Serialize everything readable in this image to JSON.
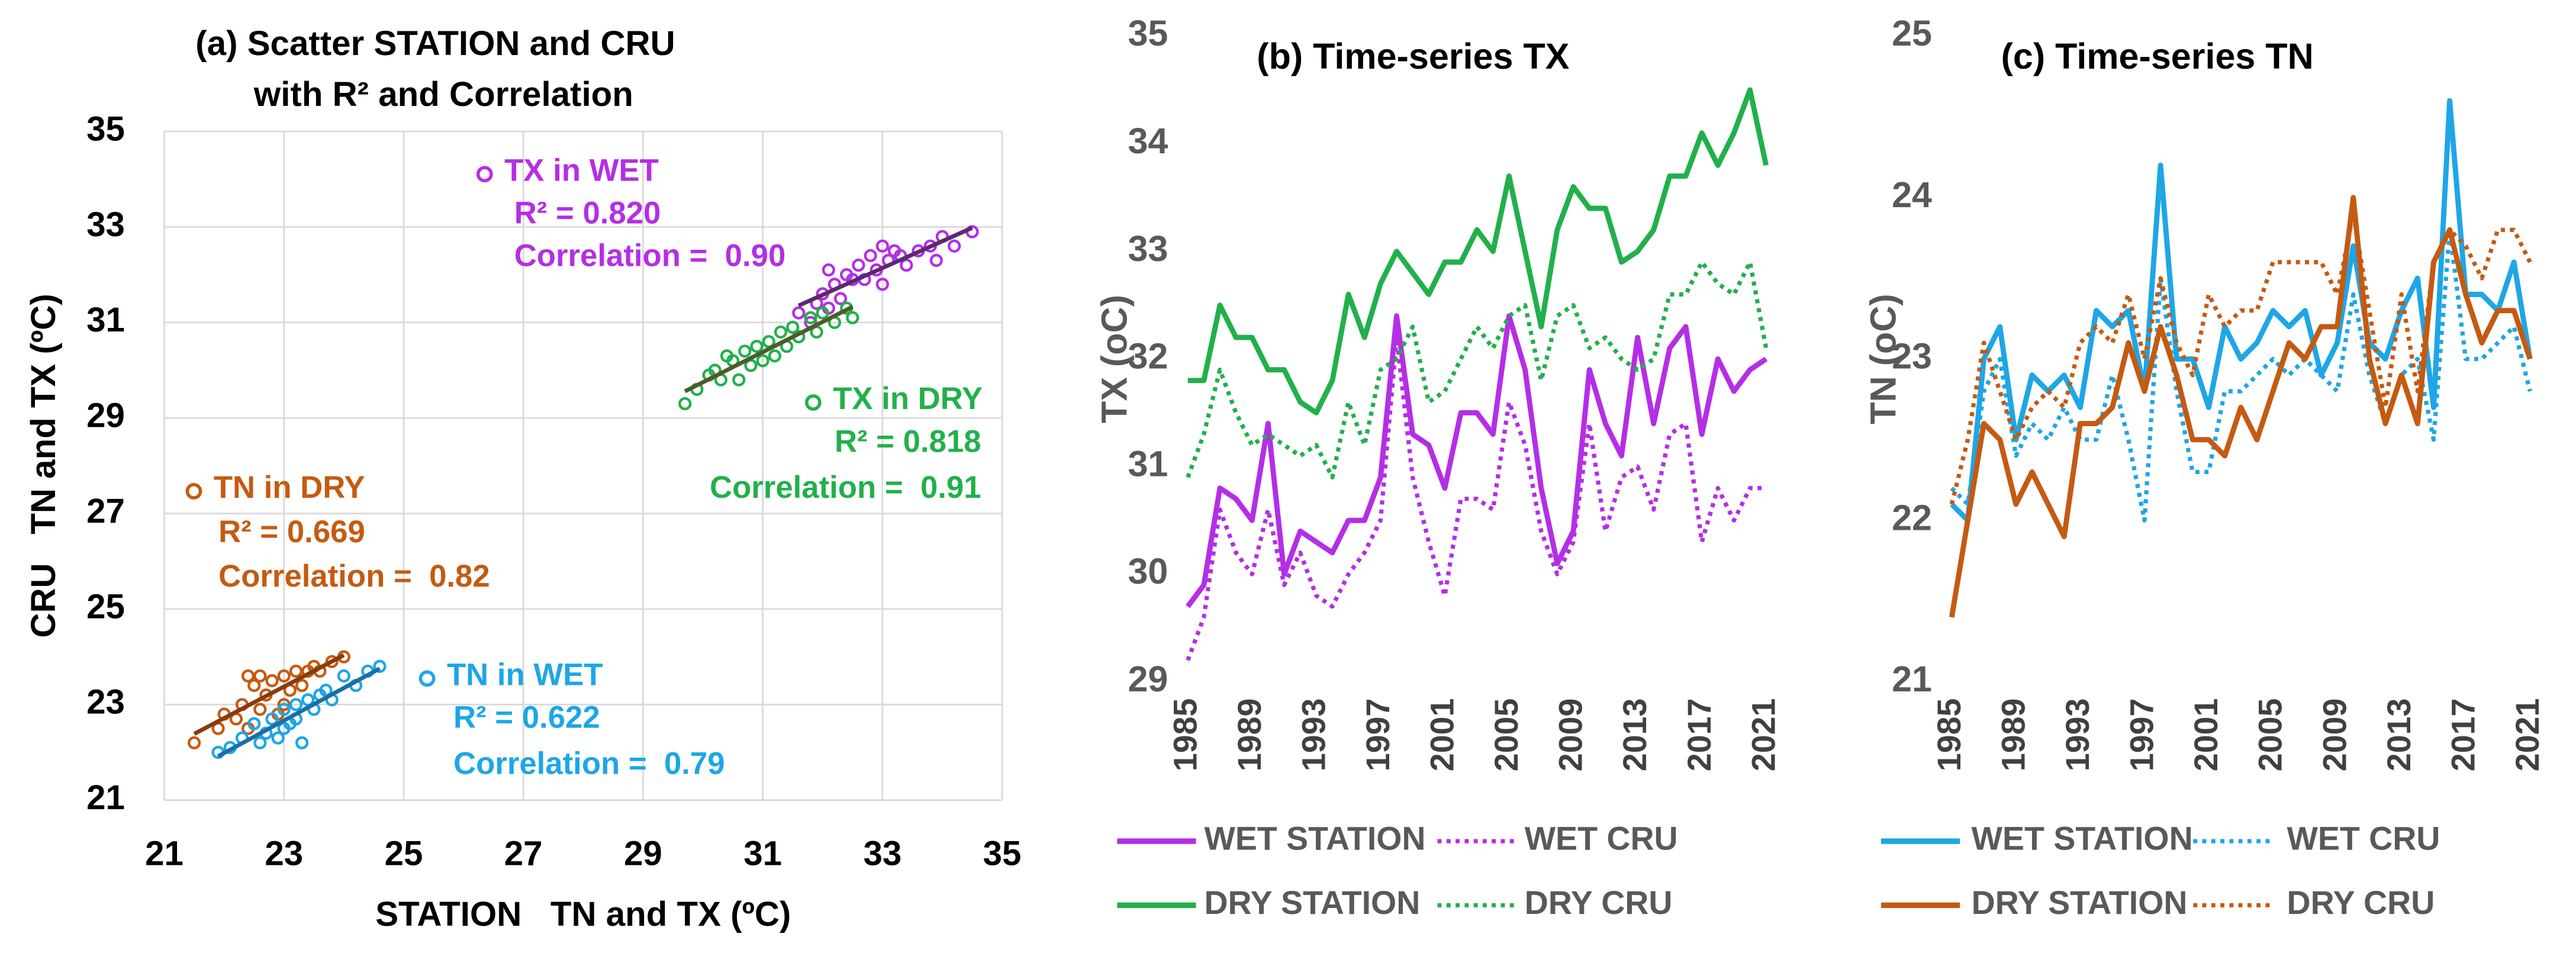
{
  "chart_data": [
    {
      "type": "scatter",
      "title": [
        "(a) Scatter STATION and CRU",
        "with R² and Correlation"
      ],
      "xlabel": "STATION   TN and TX (ºC)",
      "ylabel": "CRU   TN and TX (ºC)",
      "xlim": [
        21,
        35
      ],
      "xticks": [
        21,
        23,
        25,
        27,
        29,
        31,
        33,
        35
      ],
      "ylim": [
        21,
        35
      ],
      "yticks": [
        21,
        23,
        25,
        27,
        29,
        31,
        33,
        35
      ],
      "grid": true,
      "series": [
        {
          "name": "TX in WET",
          "color": "#b42ee6",
          "trendline": true,
          "trendline_color": "#5a2a6e",
          "r2": "R² = 0.820",
          "correlation": "Correlation =  0.90",
          "x": [
            31.6,
            31.8,
            31.9,
            32.0,
            32.1,
            32.2,
            32.3,
            32.4,
            32.5,
            32.6,
            32.7,
            32.8,
            32.9,
            33.0,
            33.1,
            33.2,
            33.3,
            33.4,
            33.6,
            33.8,
            33.9,
            34.0,
            34.2,
            34.5,
            32.1,
            33.0
          ],
          "y": [
            31.2,
            31.0,
            31.4,
            31.6,
            31.3,
            31.8,
            31.5,
            32.0,
            31.9,
            32.2,
            31.9,
            32.4,
            32.1,
            31.8,
            32.3,
            32.5,
            32.4,
            32.2,
            32.5,
            32.6,
            32.3,
            32.8,
            32.6,
            32.9,
            32.1,
            32.6
          ]
        },
        {
          "name": "TX in DRY",
          "color": "#22b04b",
          "trendline": true,
          "trendline_color": "#4f5a2a",
          "r2": "R² = 0.818",
          "correlation": "Correlation =  0.91",
          "x": [
            29.7,
            29.9,
            30.1,
            30.2,
            30.3,
            30.5,
            30.6,
            30.7,
            30.8,
            30.9,
            31.0,
            31.1,
            31.2,
            31.3,
            31.4,
            31.5,
            31.6,
            31.8,
            31.9,
            32.0,
            32.2,
            32.4,
            32.5,
            30.4
          ],
          "y": [
            29.3,
            29.6,
            29.9,
            30.0,
            29.8,
            30.2,
            29.8,
            30.4,
            30.1,
            30.5,
            30.2,
            30.6,
            30.3,
            30.8,
            30.5,
            30.9,
            30.7,
            31.1,
            30.8,
            31.2,
            31.0,
            31.3,
            31.1,
            30.3
          ]
        },
        {
          "name": "TN in DRY",
          "color": "#c55a11",
          "trendline": true,
          "trendline_color": "#8b3a0e",
          "r2": "R² = 0.669",
          "correlation": "Correlation =  0.82",
          "x": [
            21.5,
            21.9,
            22.0,
            22.2,
            22.3,
            22.4,
            22.5,
            22.6,
            22.6,
            22.7,
            22.8,
            22.9,
            23.0,
            23.1,
            23.2,
            23.3,
            23.4,
            23.5,
            23.6,
            23.8,
            24.0,
            22.4,
            23.0
          ],
          "y": [
            22.2,
            22.5,
            22.8,
            22.7,
            23.0,
            22.5,
            23.4,
            22.9,
            23.6,
            23.2,
            23.5,
            22.8,
            23.6,
            23.3,
            23.7,
            23.4,
            23.7,
            23.8,
            23.7,
            23.9,
            24.0,
            23.6,
            23.0
          ]
        },
        {
          "name": "TN in WET",
          "color": "#1ea6e6",
          "trendline": true,
          "trendline_color": "#1a6fa8",
          "r2": "R² = 0.622",
          "correlation": "Correlation =  0.79",
          "x": [
            21.9,
            22.1,
            22.3,
            22.5,
            22.6,
            22.7,
            22.8,
            22.9,
            23.0,
            23.1,
            23.2,
            23.3,
            23.4,
            23.5,
            23.6,
            23.7,
            23.8,
            24.0,
            24.2,
            24.4,
            24.6,
            23.0,
            23.2
          ],
          "y": [
            22.0,
            22.1,
            22.3,
            22.6,
            22.2,
            22.4,
            22.7,
            22.3,
            22.9,
            22.6,
            23.0,
            22.2,
            23.1,
            22.9,
            23.2,
            23.3,
            23.1,
            23.6,
            23.4,
            23.7,
            23.8,
            22.5,
            22.7
          ]
        }
      ]
    },
    {
      "type": "line",
      "title": "(b) Time-series TX",
      "ylabel": "TX (oC)",
      "ylim": [
        29,
        35
      ],
      "yticks": [
        29,
        30,
        31,
        32,
        33,
        34,
        35
      ],
      "categories": [
        1985,
        null,
        null,
        null,
        1989,
        null,
        null,
        null,
        1993,
        null,
        null,
        null,
        1997,
        null,
        null,
        null,
        2001,
        null,
        null,
        null,
        2005,
        null,
        null,
        null,
        2009,
        null,
        null,
        null,
        2013,
        null,
        null,
        null,
        2017,
        null,
        null,
        null,
        2021
      ],
      "series": [
        {
          "name": "WET STATION",
          "color": "#b42ee6",
          "line_style": "solid",
          "values": [
            29.7,
            29.9,
            30.8,
            30.7,
            30.5,
            31.4,
            30.0,
            30.4,
            30.3,
            30.2,
            30.5,
            30.5,
            30.9,
            32.4,
            31.3,
            31.2,
            30.8,
            31.5,
            31.5,
            31.3,
            32.4,
            31.9,
            30.8,
            30.1,
            30.4,
            31.9,
            31.4,
            31.1,
            32.2,
            31.4,
            32.1,
            32.3,
            31.3,
            32.0,
            31.7,
            31.9,
            32.0
          ]
        },
        {
          "name": "WET CRU",
          "color": "#b42ee6",
          "line_style": "dotted",
          "values": [
            29.2,
            29.6,
            30.6,
            30.2,
            30.0,
            30.6,
            29.9,
            30.2,
            29.8,
            29.7,
            30.0,
            30.2,
            30.5,
            32.2,
            30.9,
            30.3,
            29.8,
            30.7,
            30.7,
            30.6,
            31.6,
            31.2,
            30.4,
            30.0,
            30.3,
            31.4,
            30.4,
            30.9,
            31.0,
            30.6,
            31.3,
            31.4,
            30.3,
            30.8,
            30.5,
            30.8,
            30.8
          ]
        },
        {
          "name": "DRY STATION",
          "color": "#22b04b",
          "line_style": "solid",
          "values": [
            31.8,
            31.8,
            32.5,
            32.2,
            32.2,
            31.9,
            31.9,
            31.6,
            31.5,
            31.8,
            32.6,
            32.2,
            32.7,
            33.0,
            32.8,
            32.6,
            32.9,
            32.9,
            33.2,
            33.0,
            33.7,
            33.0,
            32.3,
            33.2,
            33.6,
            33.4,
            33.4,
            32.9,
            33.0,
            33.2,
            33.7,
            33.7,
            34.1,
            33.8,
            34.1,
            34.5,
            33.8
          ]
        },
        {
          "name": "DRY CRU",
          "color": "#22b04b",
          "line_style": "dotted",
          "values": [
            30.9,
            31.3,
            31.9,
            31.5,
            31.2,
            31.3,
            31.2,
            31.1,
            31.2,
            30.9,
            31.6,
            31.2,
            31.9,
            32.0,
            32.3,
            31.6,
            31.7,
            32.0,
            32.3,
            32.1,
            32.4,
            32.5,
            31.8,
            32.4,
            32.5,
            32.1,
            32.2,
            32.0,
            31.9,
            32.0,
            32.6,
            32.6,
            32.9,
            32.7,
            32.6,
            32.9,
            32.1
          ]
        }
      ]
    },
    {
      "type": "line",
      "title": "(c) Time-series TN",
      "ylabel": "TN (oC)",
      "ylim": [
        21,
        25
      ],
      "yticks": [
        21,
        22,
        23,
        24,
        25
      ],
      "categories": [
        1985,
        null,
        null,
        null,
        1989,
        null,
        null,
        null,
        1993,
        null,
        null,
        null,
        1997,
        null,
        null,
        null,
        2001,
        null,
        null,
        null,
        2005,
        null,
        null,
        null,
        2009,
        null,
        null,
        null,
        2013,
        null,
        null,
        null,
        2017,
        null,
        null,
        null,
        2021
      ],
      "series": [
        {
          "name": "WET STATION",
          "color": "#1ea6e6",
          "line_style": "solid",
          "values": [
            22.1,
            22.0,
            23.0,
            23.2,
            22.5,
            22.9,
            22.8,
            22.9,
            22.7,
            23.3,
            23.2,
            23.3,
            22.8,
            24.2,
            23.0,
            23.0,
            22.7,
            23.2,
            23.0,
            23.1,
            23.3,
            23.2,
            23.3,
            22.9,
            23.1,
            23.7,
            23.1,
            23.0,
            23.3,
            23.5,
            22.7,
            24.6,
            23.4,
            23.4,
            23.3,
            23.6,
            23.0
          ]
        },
        {
          "name": "WET CRU",
          "color": "#1ea6e6",
          "line_style": "dotted",
          "values": [
            22.2,
            22.1,
            22.8,
            23.0,
            22.4,
            22.6,
            22.5,
            22.7,
            22.5,
            22.5,
            22.9,
            22.5,
            22.0,
            23.5,
            22.8,
            22.3,
            22.3,
            22.8,
            22.8,
            22.9,
            23.0,
            22.9,
            23.0,
            22.9,
            22.8,
            23.4,
            22.9,
            22.6,
            22.9,
            23.0,
            22.5,
            23.8,
            23.0,
            23.0,
            23.1,
            23.2,
            22.8
          ]
        },
        {
          "name": "DRY STATION",
          "color": "#c55a11",
          "line_style": "solid",
          "values": [
            21.4,
            22.0,
            22.6,
            22.5,
            22.1,
            22.3,
            22.1,
            21.9,
            22.6,
            22.6,
            22.7,
            23.1,
            22.8,
            23.2,
            22.9,
            22.5,
            22.5,
            22.4,
            22.7,
            22.5,
            22.8,
            23.1,
            23.0,
            23.2,
            23.2,
            24.0,
            23.0,
            22.6,
            22.9,
            22.6,
            23.6,
            23.8,
            23.4,
            23.1,
            23.3,
            23.3,
            23.0
          ]
        },
        {
          "name": "DRY CRU",
          "color": "#c55a11",
          "line_style": "dotted",
          "values": [
            22.1,
            22.5,
            23.1,
            22.8,
            22.5,
            22.7,
            22.8,
            22.7,
            23.1,
            23.2,
            23.1,
            23.4,
            23.0,
            23.5,
            23.1,
            22.9,
            23.4,
            23.2,
            23.3,
            23.3,
            23.6,
            23.6,
            23.6,
            23.6,
            23.4,
            23.9,
            23.3,
            22.7,
            23.4,
            22.8,
            23.6,
            23.8,
            23.7,
            23.5,
            23.8,
            23.8,
            23.6
          ]
        }
      ]
    }
  ]
}
